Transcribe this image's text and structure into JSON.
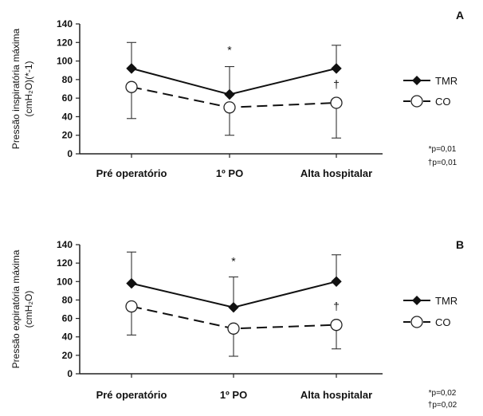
{
  "chart_data": [
    {
      "type": "line",
      "panel_label": "A",
      "ylabel_line1": "Pressão inspiratória máxima",
      "ylabel_line2": "(cmH₂O)(*-1)",
      "categories": [
        "Pré operatório",
        "1º PO",
        "Alta hospitalar"
      ],
      "ylim": [
        0,
        140
      ],
      "yticks": [
        0,
        20,
        40,
        60,
        80,
        100,
        120,
        140
      ],
      "series": [
        {
          "name": "TMR",
          "values": [
            92,
            64,
            92
          ],
          "error_upper": [
            120,
            94,
            117
          ],
          "error_lower": [
            null,
            null,
            null
          ],
          "style": "solid",
          "marker": "filled-diamond"
        },
        {
          "name": "CO",
          "values": [
            72,
            50,
            55
          ],
          "error_upper": [
            null,
            null,
            null
          ],
          "error_lower": [
            38,
            20,
            17
          ],
          "style": "dashed",
          "marker": "open-circle"
        }
      ],
      "annotations": [
        {
          "text": "*",
          "category": "1º PO",
          "y": 108
        },
        {
          "text": "†",
          "category": "Alta hospitalar",
          "y": 71
        }
      ],
      "significance": [
        "*p=0,01",
        "†p=0,01"
      ]
    },
    {
      "type": "line",
      "panel_label": "B",
      "ylabel_line1": "Pressão expiratória máxima",
      "ylabel_line2": "(cmH₂O)",
      "categories": [
        "Pré operatório",
        "1º PO",
        "Alta hospitalar"
      ],
      "ylim": [
        0,
        140
      ],
      "yticks": [
        0,
        20,
        40,
        60,
        80,
        100,
        120,
        140
      ],
      "series": [
        {
          "name": "TMR",
          "values": [
            98,
            72,
            100
          ],
          "error_upper": [
            132,
            105,
            129
          ],
          "error_lower": [
            null,
            null,
            null
          ],
          "style": "solid",
          "marker": "filled-diamond"
        },
        {
          "name": "CO",
          "values": [
            73,
            49,
            53
          ],
          "error_upper": [
            null,
            null,
            null
          ],
          "error_lower": [
            42,
            19,
            27
          ],
          "style": "dashed",
          "marker": "open-circle"
        }
      ],
      "annotations": [
        {
          "text": "*",
          "category": "1º PO",
          "y": 118
        },
        {
          "text": "†",
          "category": "Alta hospitalar",
          "y": 69
        }
      ],
      "significance": [
        "*p=0,02",
        "†p=0,02"
      ]
    }
  ]
}
